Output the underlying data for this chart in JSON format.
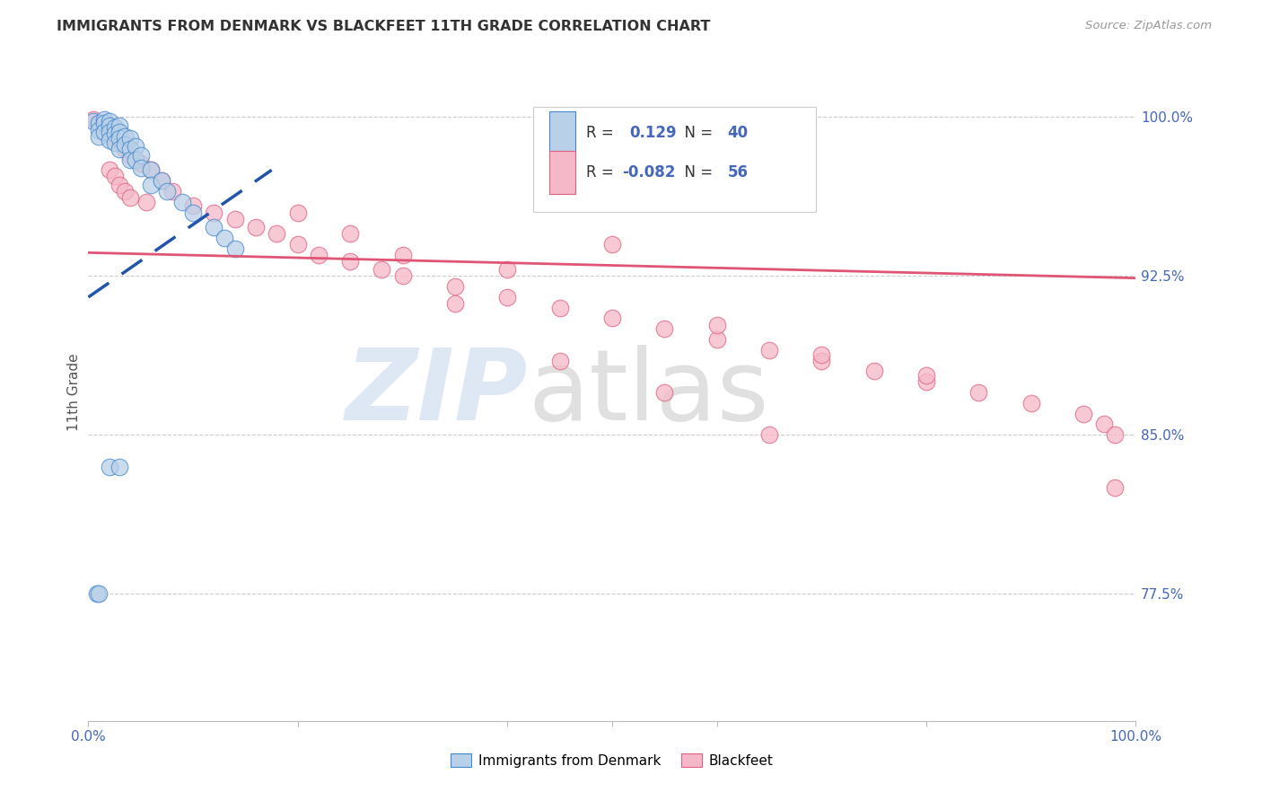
{
  "title": "IMMIGRANTS FROM DENMARK VS BLACKFEET 11TH GRADE CORRELATION CHART",
  "source": "Source: ZipAtlas.com",
  "ylabel": "11th Grade",
  "xlim": [
    0.0,
    1.0
  ],
  "ylim": [
    0.715,
    1.025
  ],
  "yticks": [
    0.775,
    0.85,
    0.925,
    1.0
  ],
  "ytick_labels": [
    "77.5%",
    "85.0%",
    "92.5%",
    "100.0%"
  ],
  "blue_R": "0.129",
  "blue_N": "40",
  "pink_R": "-0.082",
  "pink_N": "56",
  "blue_fill": "#b8d0e8",
  "blue_edge": "#4488cc",
  "pink_fill": "#f5b8c8",
  "pink_edge": "#e06080",
  "blue_line_color": "#2255aa",
  "pink_line_color": "#e05575",
  "legend_blue_label": "Immigrants from Denmark",
  "legend_pink_label": "Blackfeet",
  "blue_x": [
    0.005,
    0.01,
    0.01,
    0.01,
    0.015,
    0.015,
    0.015,
    0.02,
    0.02,
    0.02,
    0.02,
    0.025,
    0.025,
    0.025,
    0.03,
    0.03,
    0.03,
    0.03,
    0.035,
    0.035,
    0.04,
    0.04,
    0.04,
    0.045,
    0.045,
    0.05,
    0.05,
    0.06,
    0.06,
    0.07,
    0.075,
    0.09,
    0.1,
    0.12,
    0.13,
    0.14,
    0.02,
    0.03,
    0.008,
    0.01
  ],
  "blue_y": [
    0.998,
    0.997,
    0.994,
    0.991,
    0.999,
    0.997,
    0.993,
    0.998,
    0.996,
    0.993,
    0.989,
    0.995,
    0.992,
    0.988,
    0.996,
    0.993,
    0.99,
    0.985,
    0.991,
    0.987,
    0.99,
    0.985,
    0.98,
    0.986,
    0.98,
    0.982,
    0.976,
    0.975,
    0.968,
    0.97,
    0.965,
    0.96,
    0.955,
    0.948,
    0.943,
    0.938,
    0.835,
    0.835,
    0.775,
    0.775
  ],
  "pink_x": [
    0.005,
    0.01,
    0.015,
    0.02,
    0.02,
    0.025,
    0.025,
    0.03,
    0.03,
    0.035,
    0.035,
    0.04,
    0.04,
    0.05,
    0.055,
    0.06,
    0.07,
    0.08,
    0.1,
    0.12,
    0.14,
    0.16,
    0.18,
    0.2,
    0.22,
    0.25,
    0.28,
    0.3,
    0.35,
    0.4,
    0.45,
    0.5,
    0.55,
    0.6,
    0.65,
    0.7,
    0.75,
    0.8,
    0.85,
    0.9,
    0.95,
    0.97,
    0.98,
    0.5,
    0.25,
    0.3,
    0.2,
    0.4,
    0.6,
    0.7,
    0.8,
    0.35,
    0.45,
    0.55,
    0.65,
    0.98
  ],
  "pink_y": [
    0.999,
    0.997,
    0.995,
    0.993,
    0.975,
    0.99,
    0.972,
    0.988,
    0.968,
    0.985,
    0.965,
    0.982,
    0.962,
    0.978,
    0.96,
    0.975,
    0.97,
    0.965,
    0.958,
    0.955,
    0.952,
    0.948,
    0.945,
    0.94,
    0.935,
    0.932,
    0.928,
    0.925,
    0.92,
    0.915,
    0.91,
    0.905,
    0.9,
    0.895,
    0.89,
    0.885,
    0.88,
    0.875,
    0.87,
    0.865,
    0.86,
    0.855,
    0.85,
    0.94,
    0.945,
    0.935,
    0.955,
    0.928,
    0.902,
    0.888,
    0.878,
    0.912,
    0.885,
    0.87,
    0.85,
    0.825
  ],
  "blue_trend_x": [
    0.0,
    0.175
  ],
  "blue_trend_y": [
    0.915,
    0.975
  ],
  "pink_trend_x": [
    0.0,
    1.0
  ],
  "pink_trend_y": [
    0.936,
    0.924
  ],
  "grid_color": "#cccccc",
  "title_color": "#333333",
  "axis_label_color": "#4466bb",
  "marker_size": 180,
  "background_color": "#ffffff"
}
